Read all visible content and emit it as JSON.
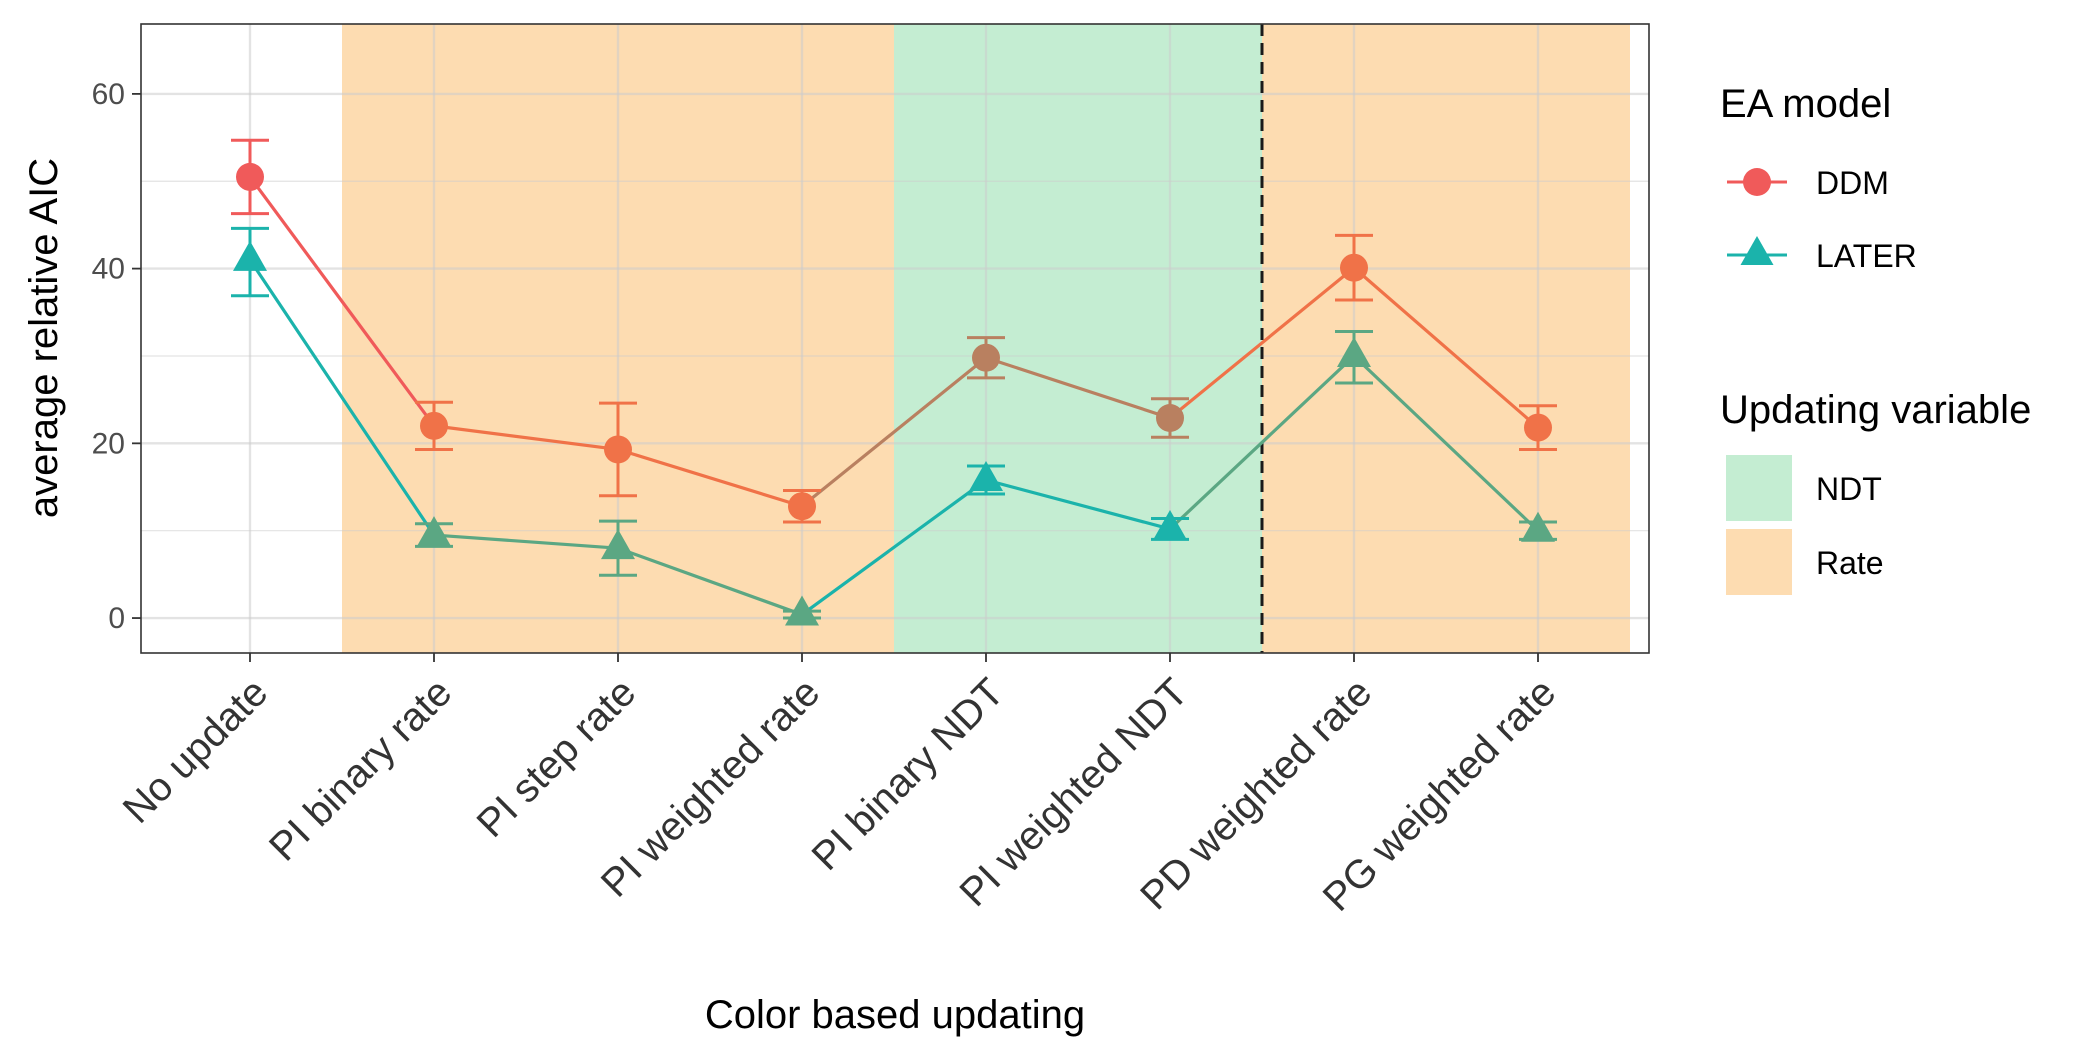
{
  "chart_data": {
    "type": "line",
    "title": "",
    "xlabel": "Color based updating",
    "ylabel": "average relative AIC",
    "categories": [
      "No update",
      "PI binary rate",
      "PI step rate",
      "PI weighted rate",
      "PI binary NDT",
      "PI weighted NDT",
      "PD weighted rate",
      "PG weighted rate"
    ],
    "ylim": [
      -4,
      68
    ],
    "yticks": [
      0,
      20,
      40,
      60
    ],
    "grid": true,
    "series": [
      {
        "name": "DDM",
        "marker": "circle",
        "values": [
          50.5,
          22.0,
          19.3,
          12.8,
          29.8,
          22.9,
          40.1,
          21.8
        ],
        "err_low": [
          46.3,
          19.3,
          14.0,
          11.0,
          27.5,
          20.7,
          36.4,
          19.3
        ],
        "err_high": [
          54.7,
          24.7,
          24.6,
          14.6,
          32.1,
          25.1,
          43.8,
          24.3
        ]
      },
      {
        "name": "LATER",
        "marker": "triangle",
        "values": [
          41.0,
          9.5,
          8.0,
          0.4,
          15.8,
          10.2,
          30.0,
          10.0
        ],
        "err_low": [
          36.9,
          8.2,
          4.9,
          0.0,
          14.2,
          9.0,
          26.9,
          9.0
        ],
        "err_high": [
          44.6,
          10.8,
          11.1,
          0.8,
          17.4,
          11.4,
          32.8,
          11.0
        ]
      }
    ],
    "shaded_regions": [
      {
        "from": 1,
        "to": 3,
        "variable": "Rate"
      },
      {
        "from": 4,
        "to": 5,
        "variable": "NDT"
      },
      {
        "from": 6,
        "to": 7,
        "variable": "Rate"
      }
    ],
    "vline_between": [
      5,
      6
    ],
    "legend": {
      "placement": "right",
      "ea_title": "EA model",
      "ea_items": [
        {
          "label": "DDM",
          "color": "#F05A5A",
          "marker": "circle"
        },
        {
          "label": "LATER",
          "color": "#1BB3AB",
          "marker": "triangle"
        }
      ],
      "var_title": "Updating variable",
      "var_items": [
        {
          "label": "NDT",
          "color": "#C4EDD2"
        },
        {
          "label": "Rate",
          "color": "#FDDCB1"
        }
      ]
    },
    "colors": {
      "ddm_default": "#F05A5A",
      "ddm_rate": "#F07248",
      "ddm_ndt": "#B98060",
      "later_default": "#1BB3AB",
      "later_rate": "#5BA783",
      "later_ndt": "#1BB3AB",
      "rate_bg": "#FDDCB1",
      "ndt_bg": "#C4EDD2"
    }
  }
}
